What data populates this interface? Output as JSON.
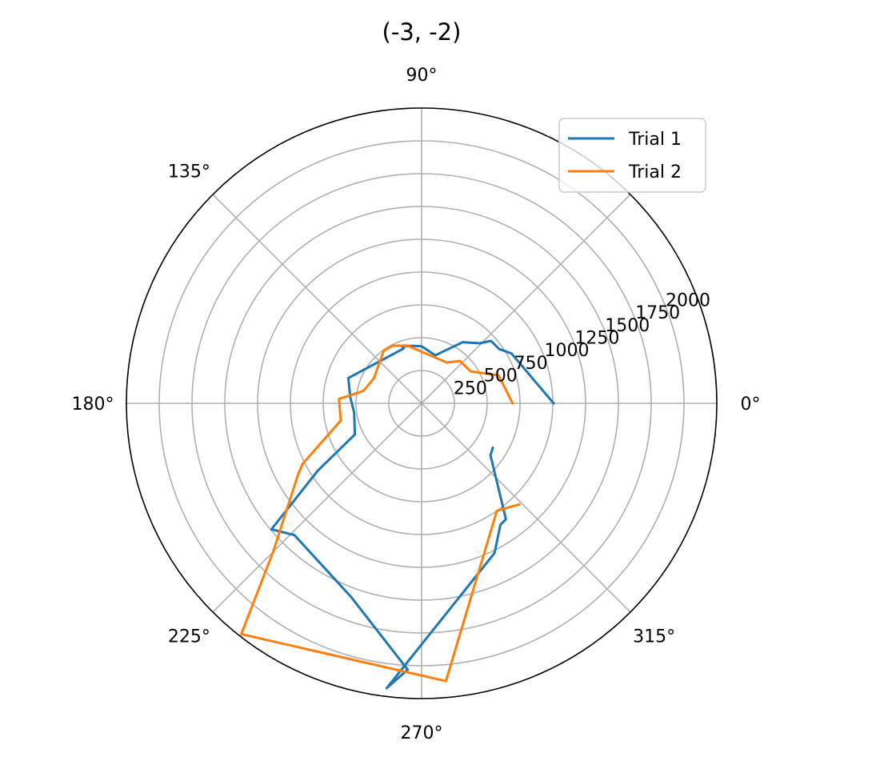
{
  "chart_data": {
    "type": "line",
    "projection": "polar",
    "title": "(-3, -2)",
    "theta_unit": "degrees",
    "theta_ticks": [
      0,
      45,
      90,
      135,
      180,
      225,
      270,
      315
    ],
    "theta_tick_labels": [
      "0°",
      "",
      "90°",
      "135°",
      "180°",
      "225°",
      "270°",
      "315°"
    ],
    "r_ticks": [
      250,
      500,
      750,
      1000,
      1250,
      1500,
      1750,
      2000
    ],
    "r_tick_labels": [
      "250",
      "500",
      "750",
      "1000",
      "1250",
      "1500",
      "1750",
      "2000"
    ],
    "r_label_angle_deg": 22.5,
    "rlim": [
      0,
      2250
    ],
    "grid": true,
    "legend_position": "top-right",
    "series": [
      {
        "name": "Trial 1",
        "color": "#1f77b4",
        "points": [
          {
            "theta": 328,
            "r": 640
          },
          {
            "theta": 323,
            "r": 657
          },
          {
            "theta": 306,
            "r": 1093
          },
          {
            "theta": 303,
            "r": 1103
          },
          {
            "theta": 296,
            "r": 1269
          },
          {
            "theta": 263,
            "r": 2187
          },
          {
            "theta": 267,
            "r": 2032
          },
          {
            "theta": 250,
            "r": 1570
          },
          {
            "theta": 226,
            "r": 1396
          },
          {
            "theta": 220,
            "r": 1494
          },
          {
            "theta": 213,
            "r": 945
          },
          {
            "theta": 205,
            "r": 561
          },
          {
            "theta": 188,
            "r": 519
          },
          {
            "theta": 175,
            "r": 546
          },
          {
            "theta": 161,
            "r": 591
          },
          {
            "theta": 108,
            "r": 440
          },
          {
            "theta": 109,
            "r": 460
          },
          {
            "theta": 99,
            "r": 444
          },
          {
            "theta": 90,
            "r": 434
          },
          {
            "theta": 74,
            "r": 380
          },
          {
            "theta": 68,
            "r": 423
          },
          {
            "theta": 56,
            "r": 562
          },
          {
            "theta": 46,
            "r": 636
          },
          {
            "theta": 42,
            "r": 711
          },
          {
            "theta": 35,
            "r": 721
          },
          {
            "theta": 29,
            "r": 783
          },
          {
            "theta": 0,
            "r": 1006
          }
        ]
      },
      {
        "name": "Trial 2",
        "color": "#ff7f0e",
        "points": [
          {
            "theta": 314,
            "r": 1071
          },
          {
            "theta": 305,
            "r": 1000
          },
          {
            "theta": 275,
            "r": 2125
          },
          {
            "theta": 232,
            "r": 2232
          },
          {
            "theta": 225,
            "r": 1600
          },
          {
            "theta": 210,
            "r": 1088
          },
          {
            "theta": 207,
            "r": 1018
          },
          {
            "theta": 192,
            "r": 630
          },
          {
            "theta": 177,
            "r": 630
          },
          {
            "theta": 168,
            "r": 453
          },
          {
            "theta": 152,
            "r": 411
          },
          {
            "theta": 126,
            "r": 493
          },
          {
            "theta": 117,
            "r": 492
          },
          {
            "theta": 104,
            "r": 454
          },
          {
            "theta": 58,
            "r": 366
          },
          {
            "theta": 48,
            "r": 435
          },
          {
            "theta": 33,
            "r": 447
          },
          {
            "theta": 20,
            "r": 624
          },
          {
            "theta": 0,
            "r": 693
          }
        ]
      }
    ]
  }
}
